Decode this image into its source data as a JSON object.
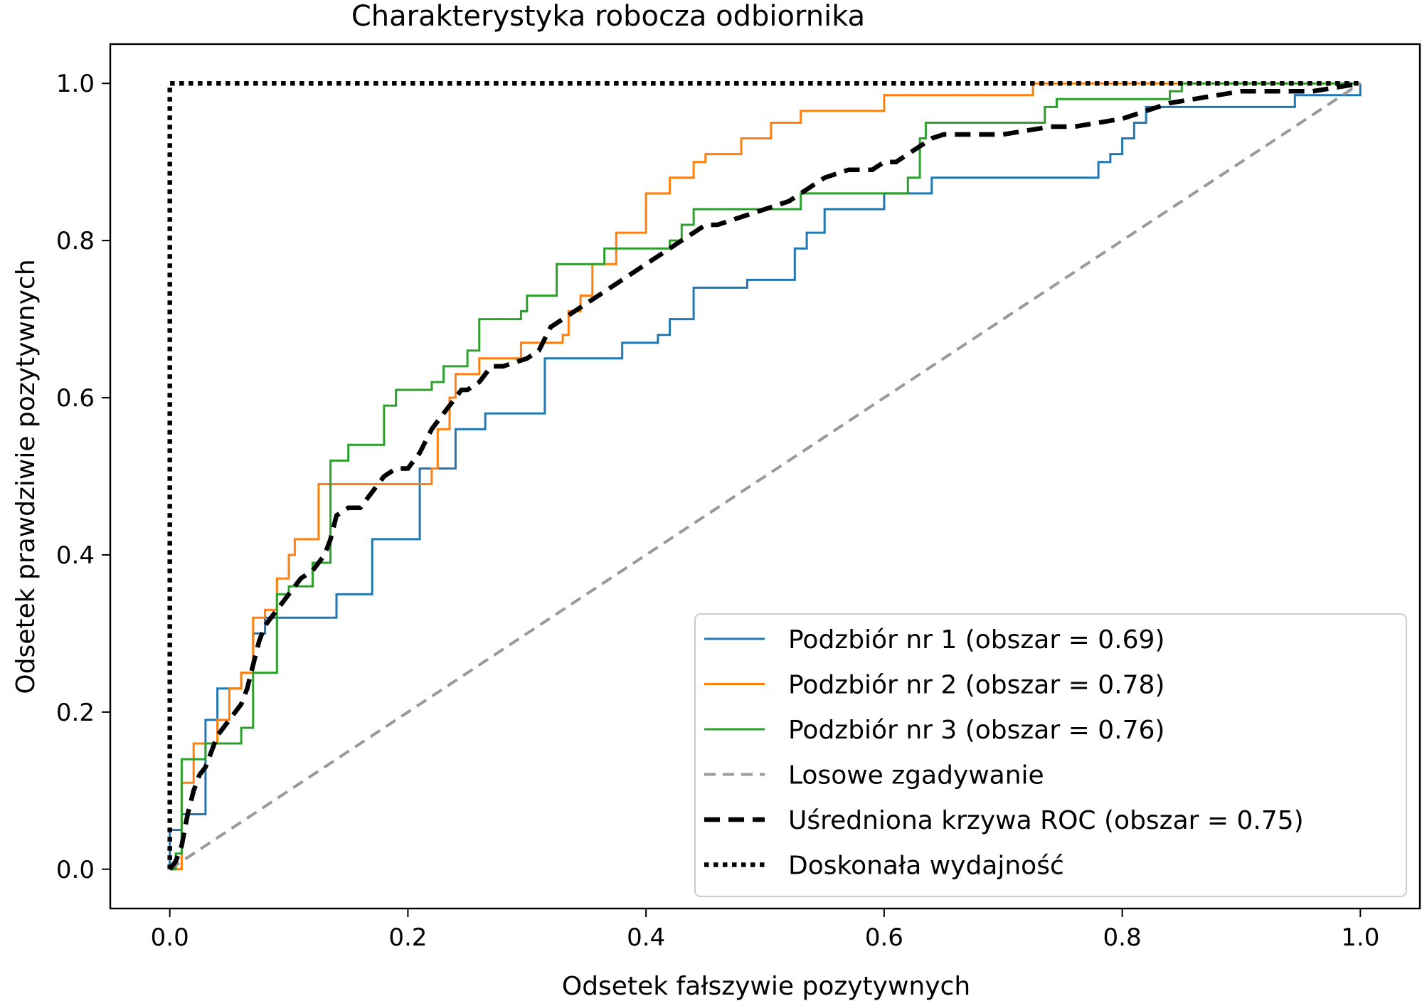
{
  "chart_data": {
    "type": "line",
    "title": "Charakterystyka robocza odbiornika",
    "xlabel": "Odsetek fałszywie pozytywnych",
    "ylabel": "Odsetek prawdziwie pozytywnych",
    "xlim": [
      -0.05,
      1.05
    ],
    "ylim": [
      -0.05,
      1.05
    ],
    "xticks": [
      "0.0",
      "0.2",
      "0.4",
      "0.6",
      "0.8",
      "1.0"
    ],
    "yticks": [
      "0.0",
      "0.2",
      "0.4",
      "0.6",
      "0.8",
      "1.0"
    ],
    "grid": false,
    "legend_position": "lower-right",
    "series": [
      {
        "name": "Podzbiór nr  1 (obszar = 0.69)",
        "color": "#1f77b4",
        "style": "solid",
        "x": [
          0,
          0,
          0.01,
          0.01,
          0.03,
          0.03,
          0.04,
          0.04,
          0.06,
          0.06,
          0.07,
          0.07,
          0.08,
          0.08,
          0.1,
          0.1,
          0.14,
          0.14,
          0.17,
          0.17,
          0.21,
          0.21,
          0.24,
          0.24,
          0.265,
          0.265,
          0.315,
          0.315,
          0.38,
          0.38,
          0.41,
          0.41,
          0.42,
          0.42,
          0.44,
          0.44,
          0.485,
          0.485,
          0.525,
          0.525,
          0.535,
          0.535,
          0.55,
          0.55,
          0.6,
          0.6,
          0.64,
          0.64,
          0.78,
          0.78,
          0.79,
          0.79,
          0.8,
          0.8,
          0.81,
          0.81,
          0.82,
          0.82,
          0.83,
          0.83,
          0.945,
          0.945,
          1,
          1
        ],
        "y": [
          0,
          0.05,
          0.05,
          0.07,
          0.07,
          0.19,
          0.19,
          0.23,
          0.23,
          0.25,
          0.25,
          0.3,
          0.3,
          0.32,
          0.32,
          0.32,
          0.32,
          0.35,
          0.35,
          0.42,
          0.42,
          0.51,
          0.51,
          0.56,
          0.56,
          0.58,
          0.58,
          0.65,
          0.65,
          0.67,
          0.67,
          0.68,
          0.68,
          0.7,
          0.7,
          0.74,
          0.74,
          0.75,
          0.75,
          0.79,
          0.79,
          0.81,
          0.81,
          0.84,
          0.84,
          0.86,
          0.86,
          0.88,
          0.88,
          0.9,
          0.9,
          0.91,
          0.91,
          0.93,
          0.93,
          0.95,
          0.95,
          0.97,
          0.97,
          0.97,
          0.97,
          0.985,
          0.985,
          1
        ]
      },
      {
        "name": "Podzbiór nr  2 (obszar = 0.78)",
        "color": "#ff7f0e",
        "style": "solid",
        "x": [
          0,
          0.01,
          0.01,
          0.02,
          0.02,
          0.04,
          0.04,
          0.05,
          0.05,
          0.06,
          0.06,
          0.07,
          0.07,
          0.08,
          0.08,
          0.09,
          0.09,
          0.1,
          0.1,
          0.105,
          0.105,
          0.11,
          0.11,
          0.125,
          0.125,
          0.22,
          0.22,
          0.225,
          0.225,
          0.235,
          0.235,
          0.24,
          0.24,
          0.26,
          0.26,
          0.295,
          0.295,
          0.315,
          0.315,
          0.33,
          0.33,
          0.335,
          0.335,
          0.345,
          0.345,
          0.355,
          0.355,
          0.375,
          0.375,
          0.4,
          0.4,
          0.42,
          0.42,
          0.44,
          0.44,
          0.45,
          0.45,
          0.48,
          0.48,
          0.505,
          0.505,
          0.53,
          0.53,
          0.6,
          0.6,
          0.725,
          0.725,
          1
        ],
        "y": [
          0,
          0,
          0.11,
          0.11,
          0.16,
          0.16,
          0.19,
          0.19,
          0.23,
          0.23,
          0.25,
          0.25,
          0.32,
          0.32,
          0.33,
          0.33,
          0.37,
          0.37,
          0.4,
          0.4,
          0.42,
          0.42,
          0.42,
          0.42,
          0.49,
          0.49,
          0.51,
          0.51,
          0.56,
          0.56,
          0.6,
          0.6,
          0.63,
          0.63,
          0.65,
          0.65,
          0.67,
          0.67,
          0.67,
          0.67,
          0.68,
          0.68,
          0.71,
          0.71,
          0.73,
          0.73,
          0.77,
          0.77,
          0.81,
          0.81,
          0.86,
          0.86,
          0.88,
          0.88,
          0.9,
          0.9,
          0.91,
          0.91,
          0.93,
          0.93,
          0.95,
          0.95,
          0.965,
          0.965,
          0.985,
          0.985,
          1,
          1
        ]
      },
      {
        "name": "Podzbiór nr  3 (obszar = 0.76)",
        "color": "#2ca02c",
        "style": "solid",
        "x": [
          0,
          0.005,
          0.005,
          0.01,
          0.01,
          0.03,
          0.03,
          0.06,
          0.06,
          0.07,
          0.07,
          0.09,
          0.09,
          0.1,
          0.1,
          0.12,
          0.12,
          0.135,
          0.135,
          0.15,
          0.15,
          0.18,
          0.18,
          0.19,
          0.19,
          0.22,
          0.22,
          0.23,
          0.23,
          0.25,
          0.25,
          0.26,
          0.26,
          0.295,
          0.295,
          0.3,
          0.3,
          0.325,
          0.325,
          0.345,
          0.345,
          0.365,
          0.365,
          0.42,
          0.42,
          0.43,
          0.43,
          0.44,
          0.44,
          0.53,
          0.53,
          0.56,
          0.56,
          0.62,
          0.62,
          0.63,
          0.63,
          0.635,
          0.635,
          0.735,
          0.735,
          0.745,
          0.745,
          0.84,
          0.84,
          0.85,
          0.85,
          1
        ],
        "y": [
          0,
          0,
          0.02,
          0.02,
          0.14,
          0.14,
          0.16,
          0.16,
          0.18,
          0.18,
          0.25,
          0.25,
          0.35,
          0.35,
          0.36,
          0.36,
          0.39,
          0.39,
          0.52,
          0.52,
          0.54,
          0.54,
          0.59,
          0.59,
          0.61,
          0.61,
          0.62,
          0.62,
          0.64,
          0.64,
          0.66,
          0.66,
          0.7,
          0.7,
          0.71,
          0.71,
          0.73,
          0.73,
          0.77,
          0.77,
          0.77,
          0.77,
          0.79,
          0.79,
          0.8,
          0.8,
          0.82,
          0.82,
          0.84,
          0.84,
          0.86,
          0.86,
          0.86,
          0.86,
          0.88,
          0.88,
          0.93,
          0.93,
          0.95,
          0.95,
          0.97,
          0.97,
          0.98,
          0.98,
          0.99,
          0.99,
          1,
          1
        ]
      },
      {
        "name": "Losowe zgadywanie",
        "color": "#999999",
        "style": "dashed",
        "x": [
          0,
          1
        ],
        "y": [
          0,
          1
        ]
      },
      {
        "name": "Uśredniona krzywa ROC  (obszar = 0.75)",
        "color": "#000000",
        "style": "dashed-bold",
        "x": [
          0,
          0.005,
          0.01,
          0.015,
          0.02,
          0.025,
          0.03,
          0.035,
          0.04,
          0.05,
          0.06,
          0.065,
          0.07,
          0.075,
          0.08,
          0.09,
          0.1,
          0.11,
          0.12,
          0.125,
          0.13,
          0.135,
          0.14,
          0.15,
          0.16,
          0.17,
          0.18,
          0.19,
          0.2,
          0.21,
          0.22,
          0.23,
          0.24,
          0.245,
          0.25,
          0.26,
          0.27,
          0.28,
          0.29,
          0.3,
          0.31,
          0.32,
          0.33,
          0.34,
          0.35,
          0.36,
          0.37,
          0.38,
          0.39,
          0.4,
          0.41,
          0.42,
          0.43,
          0.44,
          0.45,
          0.46,
          0.47,
          0.48,
          0.49,
          0.5,
          0.51,
          0.52,
          0.53,
          0.54,
          0.55,
          0.56,
          0.57,
          0.58,
          0.59,
          0.6,
          0.61,
          0.62,
          0.63,
          0.64,
          0.65,
          0.66,
          0.67,
          0.68,
          0.7,
          0.72,
          0.74,
          0.76,
          0.78,
          0.8,
          0.82,
          0.84,
          0.86,
          0.88,
          0.9,
          0.92,
          0.94,
          0.96,
          0.98,
          1
        ],
        "y": [
          0,
          0.01,
          0.03,
          0.07,
          0.1,
          0.12,
          0.13,
          0.15,
          0.17,
          0.19,
          0.21,
          0.23,
          0.26,
          0.29,
          0.31,
          0.33,
          0.35,
          0.37,
          0.38,
          0.39,
          0.4,
          0.42,
          0.45,
          0.46,
          0.46,
          0.48,
          0.5,
          0.51,
          0.51,
          0.53,
          0.56,
          0.58,
          0.6,
          0.61,
          0.61,
          0.62,
          0.64,
          0.64,
          0.645,
          0.65,
          0.66,
          0.69,
          0.7,
          0.71,
          0.72,
          0.73,
          0.74,
          0.75,
          0.76,
          0.77,
          0.78,
          0.79,
          0.8,
          0.81,
          0.82,
          0.82,
          0.825,
          0.83,
          0.835,
          0.84,
          0.845,
          0.85,
          0.86,
          0.87,
          0.88,
          0.885,
          0.89,
          0.89,
          0.89,
          0.9,
          0.9,
          0.91,
          0.92,
          0.93,
          0.935,
          0.935,
          0.935,
          0.935,
          0.935,
          0.94,
          0.945,
          0.945,
          0.95,
          0.955,
          0.965,
          0.975,
          0.98,
          0.985,
          0.99,
          0.99,
          0.99,
          0.99,
          0.995,
          1
        ]
      },
      {
        "name": "Doskonała wydajność",
        "color": "#000000",
        "style": "dotted",
        "x": [
          0,
          0,
          1
        ],
        "y": [
          0,
          1,
          1
        ]
      }
    ]
  }
}
